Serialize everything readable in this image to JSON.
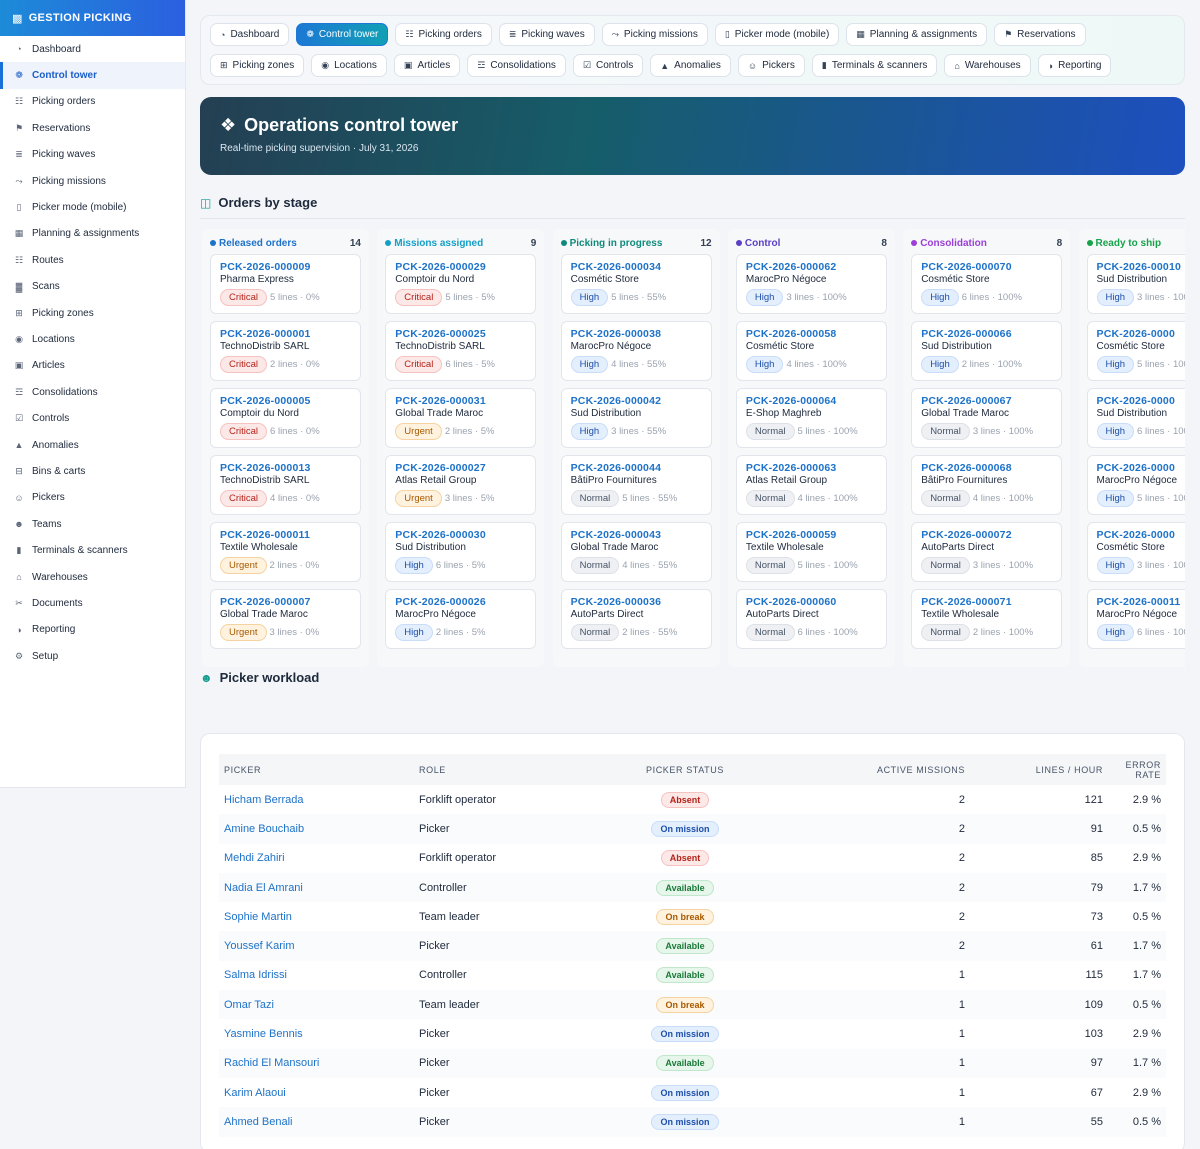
{
  "brand": "GESTION PICKING",
  "sidebar": [
    {
      "label": "Dashboard",
      "icon": "dashboard-icon",
      "active": false
    },
    {
      "label": "Control tower",
      "icon": "tower-icon",
      "active": true
    },
    {
      "label": "Picking orders",
      "icon": "clipboard-icon",
      "active": false
    },
    {
      "label": "Reservations",
      "icon": "bookmark-icon",
      "active": false
    },
    {
      "label": "Picking waves",
      "icon": "layers-icon",
      "active": false
    },
    {
      "label": "Picking missions",
      "icon": "route-icon",
      "active": false
    },
    {
      "label": "Picker mode (mobile)",
      "icon": "mobile-icon",
      "active": false
    },
    {
      "label": "Planning & assignments",
      "icon": "calendar-icon",
      "active": false
    },
    {
      "label": "Routes",
      "icon": "signpost-icon",
      "active": false
    },
    {
      "label": "Scans",
      "icon": "barcode-icon",
      "active": false
    },
    {
      "label": "Picking zones",
      "icon": "grid-icon",
      "active": false
    },
    {
      "label": "Locations",
      "icon": "pin-icon",
      "active": false
    },
    {
      "label": "Articles",
      "icon": "box-icon",
      "active": false
    },
    {
      "label": "Consolidations",
      "icon": "boxes-icon",
      "active": false
    },
    {
      "label": "Controls",
      "icon": "check-clipboard-icon",
      "active": false
    },
    {
      "label": "Anomalies",
      "icon": "warning-icon",
      "active": false
    },
    {
      "label": "Bins & carts",
      "icon": "basket-icon",
      "active": false
    },
    {
      "label": "Pickers",
      "icon": "user-icon",
      "active": false
    },
    {
      "label": "Teams",
      "icon": "users-icon",
      "active": false
    },
    {
      "label": "Terminals & scanners",
      "icon": "terminal-icon",
      "active": false
    },
    {
      "label": "Warehouses",
      "icon": "warehouse-icon",
      "active": false
    },
    {
      "label": "Documents",
      "icon": "paperclip-icon",
      "active": false
    },
    {
      "label": "Reporting",
      "icon": "pie-icon",
      "active": false
    },
    {
      "label": "Setup",
      "icon": "gear-icon",
      "active": false
    }
  ],
  "tabs": [
    {
      "label": "Dashboard",
      "icon": "dashboard-icon",
      "active": false
    },
    {
      "label": "Control tower",
      "icon": "tower-icon",
      "active": true
    },
    {
      "label": "Picking orders",
      "icon": "clipboard-icon",
      "active": false
    },
    {
      "label": "Picking waves",
      "icon": "layers-icon",
      "active": false
    },
    {
      "label": "Picking missions",
      "icon": "route-icon",
      "active": false
    },
    {
      "label": "Picker mode (mobile)",
      "icon": "mobile-icon",
      "active": false
    },
    {
      "label": "Planning & assignments",
      "icon": "calendar-icon",
      "active": false
    },
    {
      "label": "Reservations",
      "icon": "bookmark-icon",
      "active": false
    },
    {
      "label": "Picking zones",
      "icon": "grid-icon",
      "active": false
    },
    {
      "label": "Locations",
      "icon": "pin-icon",
      "active": false
    },
    {
      "label": "Articles",
      "icon": "box-icon",
      "active": false
    },
    {
      "label": "Consolidations",
      "icon": "boxes-icon",
      "active": false
    },
    {
      "label": "Controls",
      "icon": "check-clipboard-icon",
      "active": false
    },
    {
      "label": "Anomalies",
      "icon": "warning-icon",
      "active": false
    },
    {
      "label": "Pickers",
      "icon": "user-icon",
      "active": false
    },
    {
      "label": "Terminals & scanners",
      "icon": "terminal-icon",
      "active": false
    },
    {
      "label": "Warehouses",
      "icon": "warehouse-icon",
      "active": false
    },
    {
      "label": "Reporting",
      "icon": "pie-icon",
      "active": false
    }
  ],
  "hero": {
    "title": "Operations control tower",
    "subtitle": "Real-time picking supervision · July 31, 2026"
  },
  "orders_section": {
    "title": "Orders by stage"
  },
  "stages": [
    {
      "name": "Released orders",
      "count": "14",
      "color": "#1d72c9",
      "cards": [
        {
          "ref": "PCK-2026-000009",
          "customer": "Pharma Express",
          "priority": "Critical",
          "lines": "5 lines · 0%"
        },
        {
          "ref": "PCK-2026-000001",
          "customer": "TechnoDistrib SARL",
          "priority": "Critical",
          "lines": "2 lines · 0%"
        },
        {
          "ref": "PCK-2026-000005",
          "customer": "Comptoir du Nord",
          "priority": "Critical",
          "lines": "6 lines · 0%"
        },
        {
          "ref": "PCK-2026-000013",
          "customer": "TechnoDistrib SARL",
          "priority": "Critical",
          "lines": "4 lines · 0%"
        },
        {
          "ref": "PCK-2026-000011",
          "customer": "Textile Wholesale",
          "priority": "Urgent",
          "lines": "2 lines · 0%"
        },
        {
          "ref": "PCK-2026-000007",
          "customer": "Global Trade Maroc",
          "priority": "Urgent",
          "lines": "3 lines · 0%"
        }
      ]
    },
    {
      "name": "Missions assigned",
      "count": "9",
      "color": "#12a0c6",
      "cards": [
        {
          "ref": "PCK-2026-000029",
          "customer": "Comptoir du Nord",
          "priority": "Critical",
          "lines": "5 lines · 5%"
        },
        {
          "ref": "PCK-2026-000025",
          "customer": "TechnoDistrib SARL",
          "priority": "Critical",
          "lines": "6 lines · 5%"
        },
        {
          "ref": "PCK-2026-000031",
          "customer": "Global Trade Maroc",
          "priority": "Urgent",
          "lines": "2 lines · 5%"
        },
        {
          "ref": "PCK-2026-000027",
          "customer": "Atlas Retail Group",
          "priority": "Urgent",
          "lines": "3 lines · 5%"
        },
        {
          "ref": "PCK-2026-000030",
          "customer": "Sud Distribution",
          "priority": "High",
          "lines": "6 lines · 5%"
        },
        {
          "ref": "PCK-2026-000026",
          "customer": "MarocPro Négoce",
          "priority": "High",
          "lines": "2 lines · 5%"
        }
      ]
    },
    {
      "name": "Picking in progress",
      "count": "12",
      "color": "#0f8a7a",
      "cards": [
        {
          "ref": "PCK-2026-000034",
          "customer": "Cosmétic Store",
          "priority": "High",
          "lines": "5 lines · 55%"
        },
        {
          "ref": "PCK-2026-000038",
          "customer": "MarocPro Négoce",
          "priority": "High",
          "lines": "4 lines · 55%"
        },
        {
          "ref": "PCK-2026-000042",
          "customer": "Sud Distribution",
          "priority": "High",
          "lines": "3 lines · 55%"
        },
        {
          "ref": "PCK-2026-000044",
          "customer": "BâtiPro Fournitures",
          "priority": "Normal",
          "lines": "5 lines · 55%"
        },
        {
          "ref": "PCK-2026-000043",
          "customer": "Global Trade Maroc",
          "priority": "Normal",
          "lines": "4 lines · 55%"
        },
        {
          "ref": "PCK-2026-000036",
          "customer": "AutoParts Direct",
          "priority": "Normal",
          "lines": "2 lines · 55%"
        }
      ]
    },
    {
      "name": "Control",
      "count": "8",
      "color": "#5b3fc4",
      "cards": [
        {
          "ref": "PCK-2026-000062",
          "customer": "MarocPro Négoce",
          "priority": "High",
          "lines": "3 lines · 100%"
        },
        {
          "ref": "PCK-2026-000058",
          "customer": "Cosmétic Store",
          "priority": "High",
          "lines": "4 lines · 100%"
        },
        {
          "ref": "PCK-2026-000064",
          "customer": "E-Shop Maghreb",
          "priority": "Normal",
          "lines": "5 lines · 100%"
        },
        {
          "ref": "PCK-2026-000063",
          "customer": "Atlas Retail Group",
          "priority": "Normal",
          "lines": "4 lines · 100%"
        },
        {
          "ref": "PCK-2026-000059",
          "customer": "Textile Wholesale",
          "priority": "Normal",
          "lines": "5 lines · 100%"
        },
        {
          "ref": "PCK-2026-000060",
          "customer": "AutoParts Direct",
          "priority": "Normal",
          "lines": "6 lines · 100%"
        }
      ]
    },
    {
      "name": "Consolidation",
      "count": "8",
      "color": "#9b3fd6",
      "cards": [
        {
          "ref": "PCK-2026-000070",
          "customer": "Cosmétic Store",
          "priority": "High",
          "lines": "6 lines · 100%"
        },
        {
          "ref": "PCK-2026-000066",
          "customer": "Sud Distribution",
          "priority": "High",
          "lines": "2 lines · 100%"
        },
        {
          "ref": "PCK-2026-000067",
          "customer": "Global Trade Maroc",
          "priority": "Normal",
          "lines": "3 lines · 100%"
        },
        {
          "ref": "PCK-2026-000068",
          "customer": "BâtiPro Fournitures",
          "priority": "Normal",
          "lines": "4 lines · 100%"
        },
        {
          "ref": "PCK-2026-000072",
          "customer": "AutoParts Direct",
          "priority": "Normal",
          "lines": "3 lines · 100%"
        },
        {
          "ref": "PCK-2026-000071",
          "customer": "Textile Wholesale",
          "priority": "Normal",
          "lines": "2 lines · 100%"
        }
      ]
    },
    {
      "name": "Ready to ship",
      "count": "",
      "color": "#16a34a",
      "cards": [
        {
          "ref": "PCK-2026-00010",
          "customer": "Sud Distribution",
          "priority": "High",
          "lines": "3 lines · 100"
        },
        {
          "ref": "PCK-2026-0000",
          "customer": "Cosmétic Store",
          "priority": "High",
          "lines": "5 lines · 100"
        },
        {
          "ref": "PCK-2026-0000",
          "customer": "Sud Distribution",
          "priority": "High",
          "lines": "6 lines · 100"
        },
        {
          "ref": "PCK-2026-0000",
          "customer": "MarocPro Négoce",
          "priority": "High",
          "lines": "5 lines · 100"
        },
        {
          "ref": "PCK-2026-0000",
          "customer": "Cosmétic Store",
          "priority": "High",
          "lines": "3 lines · 100"
        },
        {
          "ref": "PCK-2026-00011",
          "customer": "MarocPro Négoce",
          "priority": "High",
          "lines": "6 lines · 100"
        }
      ]
    }
  ],
  "workload_section": {
    "title": "Picker workload"
  },
  "workload": {
    "headers": [
      "PICKER",
      "ROLE",
      "PICKER STATUS",
      "ACTIVE MISSIONS",
      "LINES / HOUR",
      "ERROR RATE"
    ],
    "rows": [
      {
        "picker": "Hicham Berrada",
        "role": "Forklift operator",
        "status": "Absent",
        "missions": "2",
        "lph": "121",
        "error": "2.9 %"
      },
      {
        "picker": "Amine Bouchaib",
        "role": "Picker",
        "status": "On mission",
        "missions": "2",
        "lph": "91",
        "error": "0.5 %"
      },
      {
        "picker": "Mehdi Zahiri",
        "role": "Forklift operator",
        "status": "Absent",
        "missions": "2",
        "lph": "85",
        "error": "2.9 %"
      },
      {
        "picker": "Nadia El Amrani",
        "role": "Controller",
        "status": "Available",
        "missions": "2",
        "lph": "79",
        "error": "1.7 %"
      },
      {
        "picker": "Sophie Martin",
        "role": "Team leader",
        "status": "On break",
        "missions": "2",
        "lph": "73",
        "error": "0.5 %"
      },
      {
        "picker": "Youssef Karim",
        "role": "Picker",
        "status": "Available",
        "missions": "2",
        "lph": "61",
        "error": "1.7 %"
      },
      {
        "picker": "Salma Idrissi",
        "role": "Controller",
        "status": "Available",
        "missions": "1",
        "lph": "115",
        "error": "1.7 %"
      },
      {
        "picker": "Omar Tazi",
        "role": "Team leader",
        "status": "On break",
        "missions": "1",
        "lph": "109",
        "error": "0.5 %"
      },
      {
        "picker": "Yasmine Bennis",
        "role": "Picker",
        "status": "On mission",
        "missions": "1",
        "lph": "103",
        "error": "2.9 %"
      },
      {
        "picker": "Rachid El Mansouri",
        "role": "Picker",
        "status": "Available",
        "missions": "1",
        "lph": "97",
        "error": "1.7 %"
      },
      {
        "picker": "Karim Alaoui",
        "role": "Picker",
        "status": "On mission",
        "missions": "1",
        "lph": "67",
        "error": "2.9 %"
      },
      {
        "picker": "Ahmed Benali",
        "role": "Picker",
        "status": "On mission",
        "missions": "1",
        "lph": "55",
        "error": "0.5 %"
      }
    ]
  }
}
